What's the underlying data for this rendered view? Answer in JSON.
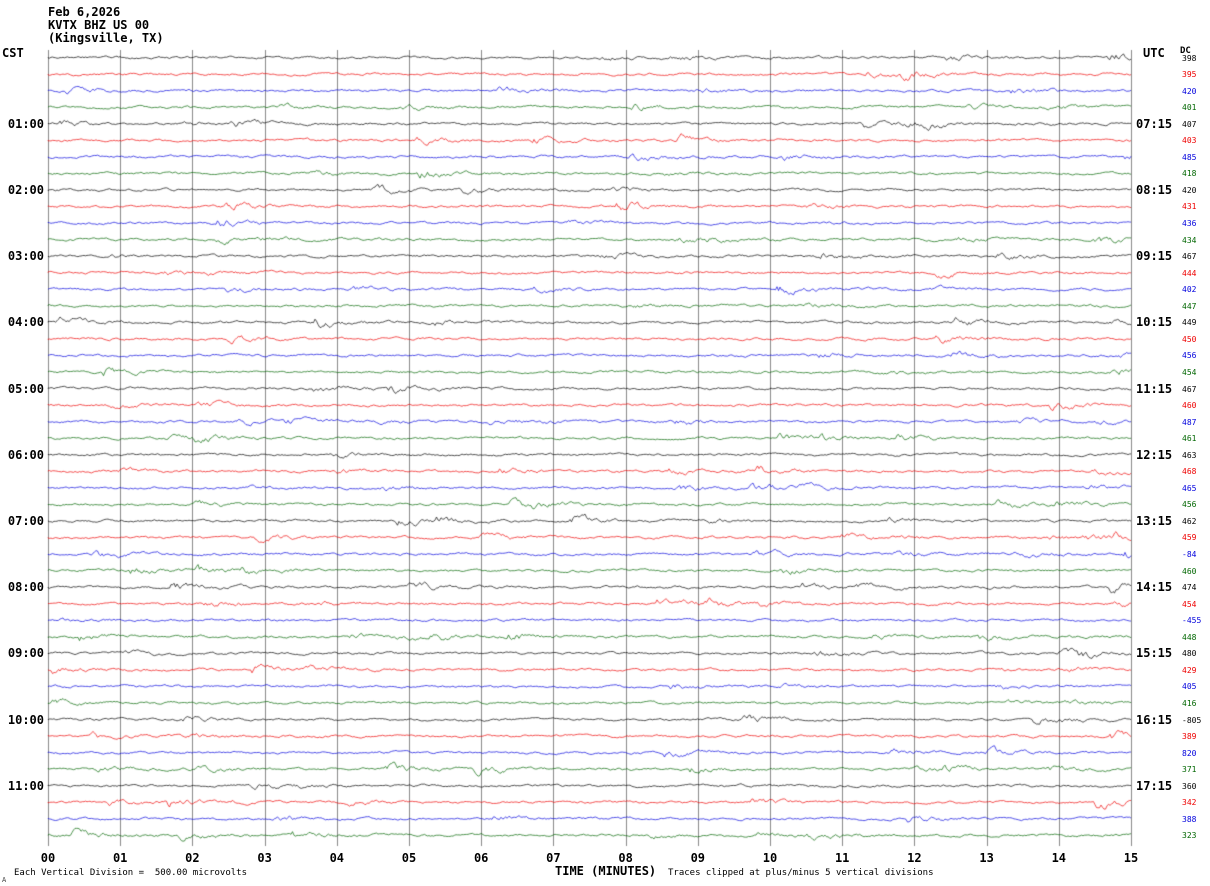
{
  "header": {
    "date": "Feb 6,2026",
    "station": "KVTX BHZ US 00",
    "location": "(Kingsville, TX)"
  },
  "axes": {
    "left_label": "CST",
    "right_label": "UTC",
    "dc_label": "DC",
    "x_label": "TIME (MINUTES)",
    "x_ticks": [
      "00",
      "01",
      "02",
      "03",
      "04",
      "05",
      "06",
      "07",
      "08",
      "09",
      "10",
      "11",
      "12",
      "13",
      "14",
      "15"
    ],
    "left_times": [
      {
        "row": 4,
        "label": "01:00"
      },
      {
        "row": 8,
        "label": "02:00"
      },
      {
        "row": 12,
        "label": "03:00"
      },
      {
        "row": 16,
        "label": "04:00"
      },
      {
        "row": 20,
        "label": "05:00"
      },
      {
        "row": 24,
        "label": "06:00"
      },
      {
        "row": 28,
        "label": "07:00"
      },
      {
        "row": 32,
        "label": "08:00"
      },
      {
        "row": 36,
        "label": "09:00"
      },
      {
        "row": 40,
        "label": "10:00"
      },
      {
        "row": 44,
        "label": "11:00"
      }
    ],
    "right_times": [
      {
        "row": 4,
        "label": "07:15"
      },
      {
        "row": 8,
        "label": "08:15"
      },
      {
        "row": 12,
        "label": "09:15"
      },
      {
        "row": 16,
        "label": "10:15"
      },
      {
        "row": 20,
        "label": "11:15"
      },
      {
        "row": 24,
        "label": "12:15"
      },
      {
        "row": 28,
        "label": "13:15"
      },
      {
        "row": 32,
        "label": "14:15"
      },
      {
        "row": 36,
        "label": "15:15"
      },
      {
        "row": 40,
        "label": "16:15"
      },
      {
        "row": 44,
        "label": "17:15"
      }
    ]
  },
  "traces": {
    "rows": 48,
    "colors": [
      "#000000",
      "#ee0000",
      "#0000dd",
      "#006600"
    ],
    "grid_color": "#888888",
    "dc_values": [
      "398",
      "395",
      "420",
      "401",
      "407",
      "403",
      "485",
      "418",
      "420",
      "431",
      "436",
      "434",
      "467",
      "444",
      "402",
      "447",
      "449",
      "450",
      "456",
      "454",
      "467",
      "460",
      "487",
      "461",
      "463",
      "468",
      "465",
      "456",
      "462",
      "459",
      "-84",
      "460",
      "474",
      "454",
      "-455",
      "448",
      "480",
      "429",
      "405",
      "416",
      "-805",
      "389",
      "820",
      "371",
      "360",
      "342",
      "388",
      "323"
    ]
  },
  "footer": {
    "scale_note": "Each Vertical Division =  500.00 microvolts",
    "clip_note": "Traces clipped at plus/minus 5 vertical divisions",
    "corner_mark": "A"
  },
  "chart_data": {
    "type": "line",
    "title": "KVTX BHZ US 00 (Kingsville, TX) helicorder, Feb 6,2026",
    "xlabel": "TIME (MINUTES)",
    "x_range_minutes": [
      0,
      15
    ],
    "rows": 48,
    "row_duration_minutes": 15,
    "trace_color_cycle": [
      "black",
      "red",
      "blue",
      "green"
    ],
    "left_axis_hour_labels_cst": [
      "01:00",
      "02:00",
      "03:00",
      "04:00",
      "05:00",
      "06:00",
      "07:00",
      "08:00",
      "09:00",
      "10:00",
      "11:00"
    ],
    "right_axis_hour_labels_utc": [
      "07:15",
      "08:15",
      "09:15",
      "10:15",
      "11:15",
      "12:15",
      "13:15",
      "14:15",
      "15:15",
      "16:15",
      "17:15"
    ],
    "dc_offsets": [
      398,
      395,
      420,
      401,
      407,
      403,
      485,
      418,
      420,
      431,
      436,
      434,
      467,
      444,
      402,
      447,
      449,
      450,
      456,
      454,
      467,
      460,
      487,
      461,
      463,
      468,
      465,
      456,
      462,
      459,
      -84,
      460,
      474,
      454,
      -455,
      448,
      480,
      429,
      405,
      416,
      -805,
      389,
      820,
      371,
      360,
      342,
      388,
      323
    ],
    "y_scale": "Each Vertical Division = 500.00 microvolts",
    "clipping": "Traces clipped at plus/minus 5 vertical divisions",
    "description": "Continuous low-amplitude seismic background noise on all 48 fifteen-minute traces; no large distinct events."
  }
}
